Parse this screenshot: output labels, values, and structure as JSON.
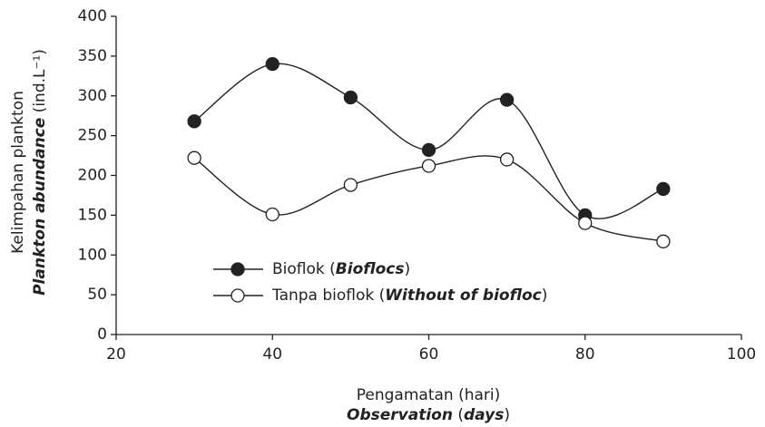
{
  "chart_data": {
    "type": "line",
    "x_label": "Pengamatan (hari)",
    "x_label_translation": "Observation (days)",
    "y_label": "Kelimpahan plankton",
    "y_label_translation": "Plankton abundance (ind.L⁻¹)",
    "x": [
      30,
      40,
      50,
      60,
      70,
      80,
      90
    ],
    "series": [
      {
        "name": "Bioflok (Bioflocs)",
        "color": "#222222",
        "values": [
          268,
          340,
          298,
          232,
          295,
          150,
          183
        ]
      },
      {
        "name": "Tanpa bioflok (Without of biofloc)",
        "color": "#ffffff",
        "values": [
          222,
          151,
          188,
          212,
          220,
          140,
          117
        ]
      }
    ],
    "xlim": [
      20,
      100
    ],
    "xticks": [
      20,
      40,
      60,
      80,
      100
    ],
    "ylim": [
      0,
      400
    ],
    "yticks": [
      0,
      50,
      100,
      150,
      200,
      250,
      300,
      350,
      400
    ],
    "grid": false
  }
}
